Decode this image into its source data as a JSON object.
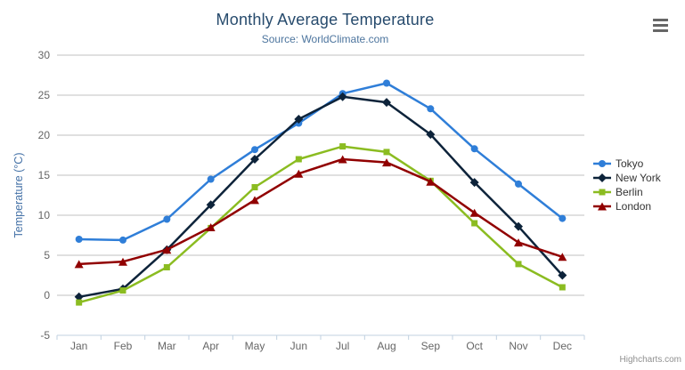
{
  "header": {
    "title": "Monthly Average Temperature",
    "subtitle": "Source: WorldClimate.com"
  },
  "credit": "Highcharts.com",
  "menu": {
    "icon": "hamburger"
  },
  "colors": {
    "title": "#274b6d",
    "subtitle": "#4d759e",
    "axis_label": "#666666",
    "y_axis_title": "#4572a7",
    "gridline": "#c0c0c0",
    "x_axis_line": "#c0d0e0",
    "legend_text": "#333333",
    "credit_text": "#909090"
  },
  "chart_data": {
    "type": "line",
    "title": "Monthly Average Temperature",
    "subtitle": "Source: WorldClimate.com",
    "categories": [
      "Jan",
      "Feb",
      "Mar",
      "Apr",
      "May",
      "Jun",
      "Jul",
      "Aug",
      "Sep",
      "Oct",
      "Nov",
      "Dec"
    ],
    "series": [
      {
        "name": "Tokyo",
        "color": "#2f7ed8",
        "marker": "circle",
        "values": [
          7.0,
          6.9,
          9.5,
          14.5,
          18.2,
          21.5,
          25.2,
          26.5,
          23.3,
          18.3,
          13.9,
          9.6
        ]
      },
      {
        "name": "New York",
        "color": "#0d233a",
        "marker": "diamond",
        "values": [
          -0.2,
          0.8,
          5.7,
          11.3,
          17.0,
          22.0,
          24.8,
          24.1,
          20.1,
          14.1,
          8.6,
          2.5
        ]
      },
      {
        "name": "Berlin",
        "color": "#8bbc21",
        "marker": "square",
        "values": [
          -0.9,
          0.6,
          3.5,
          8.4,
          13.5,
          17.0,
          18.6,
          17.9,
          14.3,
          9.0,
          3.9,
          1.0
        ]
      },
      {
        "name": "London",
        "color": "#910000",
        "marker": "triangle",
        "values": [
          3.9,
          4.2,
          5.7,
          8.5,
          11.9,
          15.2,
          17.0,
          16.6,
          14.2,
          10.3,
          6.6,
          4.8
        ]
      }
    ],
    "xlabel": "",
    "ylabel": "Temperature (°C)",
    "ylim": [
      -5,
      30
    ],
    "yticks": [
      -5,
      0,
      5,
      10,
      15,
      20,
      25,
      30
    ],
    "grid": true,
    "legend_position": "right-middle"
  }
}
